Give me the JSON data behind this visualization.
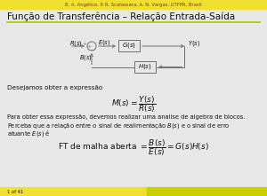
{
  "title": "Função de Transferência – Relação Entrada-Saída",
  "header_text": "B. A. Angélico, P. R. Scalassara, A. N. Vargas, UTFPR, Brasil",
  "header_bg": "#f0e030",
  "footer_bg": "#c8d000",
  "footer_bg2": "#f0e030",
  "slide_bg": "#e8e8e8",
  "line_color": "#707070",
  "box_color": "#707070",
  "text1": "Desejamos obter a expressão",
  "math1": "$M(s) = \\dfrac{Y(s)}{R(s)}$",
  "text2": "Para obter essa expressão, devemos realizar uma analise de algebra de blocos.",
  "text3": "Perceba que a relação entre o sinal de realimentação $B(s)$ e o sinal de erro",
  "text4": "atuante $E(s)$ é",
  "math2": "FT de malha aberta $= \\dfrac{B(s)}{E(s)} = G(s)H(s)$",
  "footer_text": "1 of 41",
  "green_line_color": "#a0cc00"
}
